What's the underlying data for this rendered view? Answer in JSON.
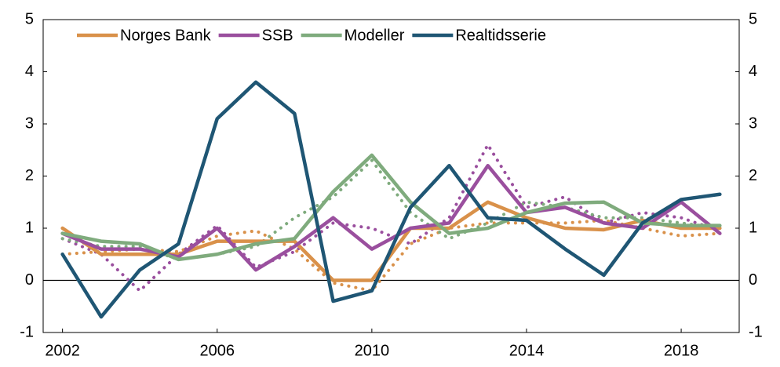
{
  "chart_data": {
    "type": "line",
    "x": [
      2002,
      2003,
      2004,
      2005,
      2006,
      2007,
      2008,
      2009,
      2010,
      2011,
      2012,
      2013,
      2014,
      2015,
      2016,
      2017,
      2018,
      2019
    ],
    "xlim": [
      2001.5,
      2019.5
    ],
    "xticks": [
      2002,
      2006,
      2010,
      2014,
      2018
    ],
    "ylim": [
      -1,
      5
    ],
    "yticks": [
      -1,
      0,
      1,
      2,
      3,
      4,
      5
    ],
    "grid": false,
    "legend": "top-left",
    "series": [
      {
        "name": "Norges Bank",
        "color": "#d9914a",
        "dash": "solid",
        "values": [
          1.0,
          0.5,
          0.5,
          0.5,
          0.75,
          0.75,
          0.75,
          0.0,
          0.0,
          1.0,
          1.0,
          1.5,
          1.2,
          1.0,
          0.97,
          1.15,
          1.0,
          1.0
        ]
      },
      {
        "name": "SSB",
        "color": "#9a4f9e",
        "dash": "solid",
        "values": [
          0.9,
          0.6,
          0.6,
          0.45,
          1.0,
          0.2,
          0.65,
          1.2,
          0.6,
          1.0,
          1.1,
          2.2,
          1.3,
          1.4,
          1.1,
          1.0,
          1.5,
          0.9
        ]
      },
      {
        "name": "Modeller",
        "color": "#7fab7d",
        "dash": "solid",
        "values": [
          0.9,
          0.75,
          0.7,
          0.4,
          0.5,
          0.7,
          0.8,
          1.7,
          2.4,
          1.5,
          0.9,
          1.0,
          1.3,
          1.48,
          1.5,
          1.1,
          1.05,
          1.05
        ]
      },
      {
        "name": "Realtidsserie",
        "color": "#1f5674",
        "dash": "solid",
        "values": [
          0.5,
          -0.7,
          0.2,
          0.7,
          3.1,
          3.8,
          3.2,
          -0.4,
          -0.2,
          1.4,
          2.2,
          1.2,
          1.15,
          0.6,
          0.1,
          1.1,
          1.55,
          1.65
        ]
      },
      {
        "color": "#d9914a",
        "dash": "dotted",
        "values": [
          0.5,
          0.55,
          0.6,
          0.55,
          0.85,
          0.95,
          0.6,
          -0.05,
          -0.2,
          0.7,
          1.0,
          1.1,
          1.1,
          1.1,
          1.15,
          1.0,
          0.85,
          0.9
        ]
      },
      {
        "color": "#9a4f9e",
        "dash": "dotted",
        "values": [
          0.8,
          0.5,
          -0.2,
          0.5,
          1.05,
          0.25,
          0.55,
          1.1,
          1.0,
          0.7,
          1.2,
          2.6,
          1.4,
          1.6,
          1.1,
          1.3,
          1.2,
          0.95
        ]
      },
      {
        "color": "#7fab7d",
        "dash": "dotted",
        "values": [
          0.8,
          0.65,
          0.65,
          0.4,
          0.5,
          0.65,
          1.2,
          1.6,
          2.3,
          1.3,
          0.8,
          1.1,
          1.5,
          1.4,
          1.2,
          1.2,
          1.1,
          1.0
        ]
      }
    ]
  }
}
